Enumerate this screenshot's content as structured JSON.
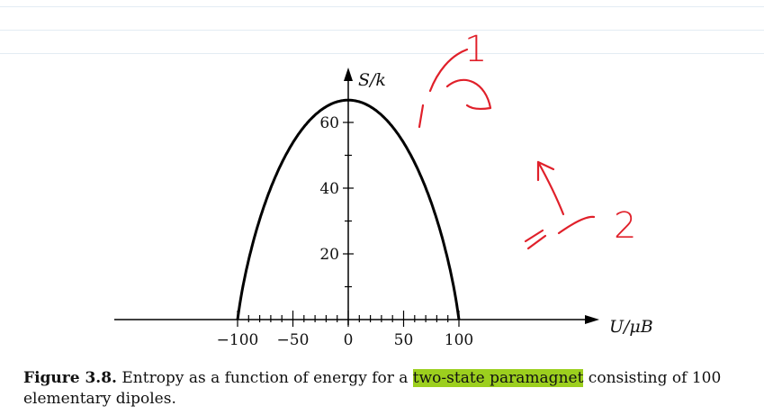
{
  "chart_data": {
    "type": "line",
    "xlabel": "U/μB",
    "ylabel": "S/k",
    "xlim": [
      -100,
      100
    ],
    "ylim": [
      0,
      70
    ],
    "x_ticks_labeled": [
      "−100",
      "−50",
      "0",
      "50",
      "100"
    ],
    "y_ticks_labeled": [
      "20",
      "40",
      "60"
    ],
    "series": [
      {
        "x": [
          -100,
          -90,
          -80,
          -70,
          -60,
          -50,
          -40,
          -30,
          -20,
          -10,
          0,
          10,
          20,
          30,
          40,
          50,
          60,
          70,
          80,
          90,
          100
        ],
        "y": [
          0,
          21.9,
          32.5,
          42.6,
          49.1,
          54.9,
          58.8,
          62.1,
          64.6,
          66.2,
          66.7,
          66.2,
          64.6,
          62.1,
          58.8,
          54.9,
          49.1,
          42.6,
          32.5,
          21.9,
          0
        ]
      }
    ],
    "annotations": [
      {
        "text": "1",
        "at_x": 32
      },
      {
        "text": "2",
        "at_x": 84
      }
    ],
    "grid": false
  },
  "caption": {
    "figure_label": "Figure 3.8.",
    "text_before": " Entropy as a function of energy for a ",
    "highlighted": "two-state paramagnet",
    "text_after": " consisting of 100 elementary dipoles."
  },
  "colors": {
    "ink": "#e0202a",
    "highlight": "#9ccf1e",
    "curve": "#000000"
  }
}
